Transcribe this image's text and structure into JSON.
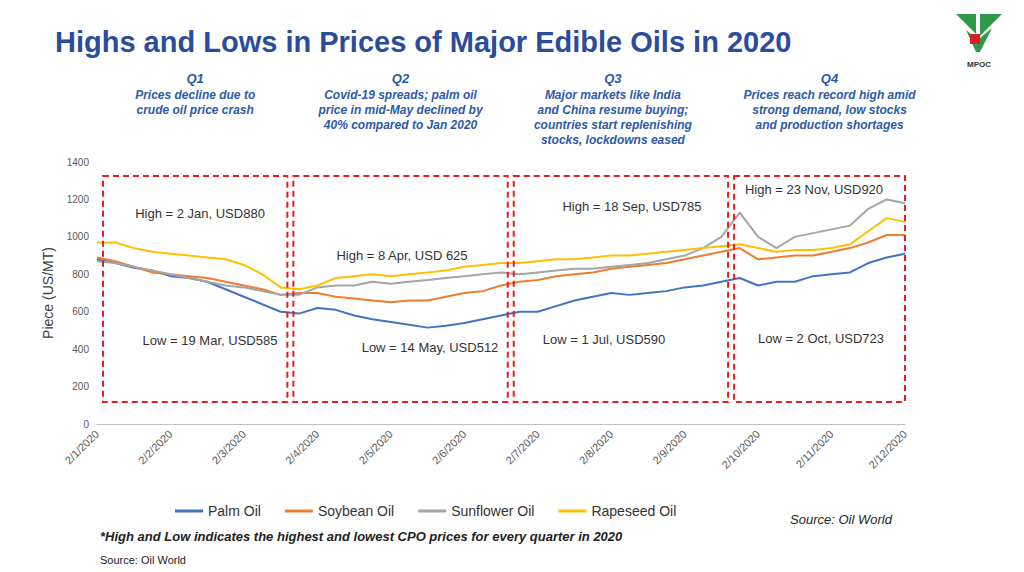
{
  "chart_data": {
    "type": "line",
    "title": "Highs and Lows in Prices of Major Edible Oils in 2020",
    "logo": "MPOC",
    "y_label": "Piece (US/MT)",
    "categories": [
      "2/1/2020",
      null,
      null,
      null,
      "2/2/2020",
      null,
      null,
      null,
      "2/3/2020",
      null,
      null,
      null,
      "2/4/2020",
      null,
      null,
      null,
      "2/5/2020",
      null,
      null,
      null,
      "2/6/2020",
      null,
      null,
      null,
      "2/7/2020",
      null,
      null,
      null,
      "2/8/2020",
      null,
      null,
      null,
      "2/9/2020",
      null,
      null,
      null,
      "2/10/2020",
      null,
      null,
      null,
      "2/11/2020",
      null,
      null,
      null,
      "2/12/2020"
    ],
    "ylim": [
      0,
      1400
    ],
    "yticks": [
      0,
      200,
      400,
      600,
      800,
      1000,
      1200,
      1400
    ],
    "grid": false,
    "legend": "bottom",
    "series": [
      {
        "name": "Palm Oil",
        "color": "#4472c4",
        "values": [
          880,
          860,
          835,
          820,
          790,
          780,
          760,
          720,
          680,
          640,
          600,
          590,
          620,
          610,
          580,
          560,
          545,
          530,
          515,
          525,
          540,
          560,
          580,
          600,
          600,
          630,
          660,
          680,
          700,
          690,
          700,
          710,
          730,
          740,
          760,
          780,
          740,
          760,
          760,
          790,
          800,
          810,
          860,
          890,
          910
        ]
      },
      {
        "name": "Soybean Oil",
        "color": "#ed7d31",
        "values": [
          890,
          870,
          840,
          810,
          800,
          790,
          780,
          760,
          740,
          720,
          690,
          700,
          700,
          680,
          670,
          660,
          650,
          660,
          660,
          680,
          700,
          710,
          740,
          760,
          770,
          790,
          800,
          810,
          830,
          840,
          850,
          860,
          880,
          900,
          920,
          940,
          880,
          890,
          900,
          900,
          920,
          940,
          970,
          1010,
          1010
        ]
      },
      {
        "name": "Sunflower Oil",
        "color": "#a5a5a5",
        "values": [
          870,
          860,
          840,
          820,
          800,
          780,
          760,
          740,
          730,
          710,
          690,
          690,
          730,
          740,
          740,
          760,
          750,
          760,
          770,
          780,
          790,
          800,
          810,
          800,
          810,
          820,
          830,
          830,
          840,
          850,
          860,
          880,
          900,
          940,
          1000,
          1130,
          1000,
          940,
          1000,
          1020,
          1040,
          1060,
          1150,
          1200,
          1180
        ]
      },
      {
        "name": "Rapeseed Oil",
        "color": "#ffc000",
        "values": [
          970,
          970,
          940,
          920,
          910,
          900,
          890,
          880,
          850,
          800,
          730,
          720,
          740,
          780,
          790,
          800,
          790,
          800,
          810,
          820,
          840,
          850,
          860,
          860,
          870,
          880,
          880,
          890,
          900,
          900,
          910,
          920,
          930,
          940,
          950,
          960,
          940,
          920,
          930,
          930,
          940,
          960,
          1030,
          1100,
          1080
        ]
      }
    ],
    "quarters": [
      {
        "label": "Q1",
        "text": "Prices decline due to\ncrude oil price crash",
        "high": "High = 2 Jan, USD880",
        "low": "Low = 19 Mar, USD585"
      },
      {
        "label": "Q2",
        "text": "Covid-19 spreads; palm oil\nprice in mid-May declined by\n40% compared to Jan 2020",
        "high": "High = 8 Apr, USD 625",
        "low": "Low = 14 May, USD512"
      },
      {
        "label": "Q3",
        "text": "Major markets like India\nand China resume buying;\ncountries start replenishing\nstocks, lockdowns eased",
        "high": "High = 18 Sep, USD785",
        "low": "Low = 1 Jul, USD590"
      },
      {
        "label": "Q4",
        "text": "Prices reach record high amid\nstrong demand, low stocks\nand production shortages",
        "high": "High = 23 Nov, USD920",
        "low": "Low = 2 Oct, USD723"
      }
    ],
    "footnote": "*High and Low indicates the highest and lowest CPO prices for every quarter in 2020",
    "sources": [
      "Source: Oil World",
      "Source: Oil World"
    ]
  }
}
